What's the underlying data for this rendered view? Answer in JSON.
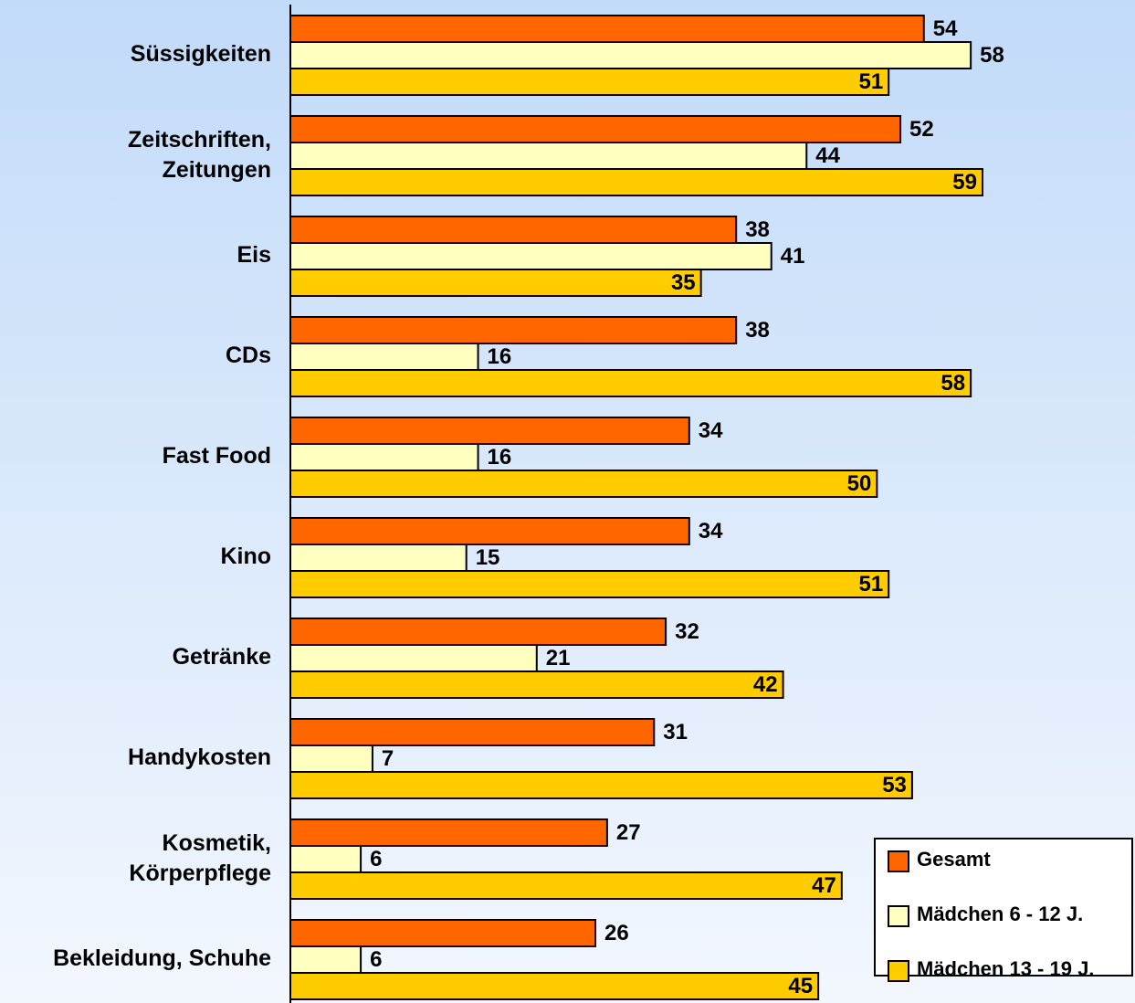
{
  "chart_data": {
    "type": "hbar",
    "categories": [
      "Süssigkeiten",
      "Zeitschriften,\nZeitungen",
      "Eis",
      "CDs",
      "Fast Food",
      "Kino",
      "Getränke",
      "Handykosten",
      "Kosmetik,\nKörperpflege",
      "Bekleidung, Schuhe"
    ],
    "series": [
      {
        "name": "Gesamt",
        "color": "#ff6600",
        "values": [
          54,
          52,
          38,
          38,
          34,
          34,
          32,
          31,
          27,
          26
        ]
      },
      {
        "name": "Mädchen 6 - 12 J.",
        "color": "#ffffc0",
        "values": [
          58,
          44,
          41,
          16,
          16,
          15,
          21,
          7,
          6,
          6
        ]
      },
      {
        "name": "Mädchen 13 - 19 J.",
        "color": "#ffcc00",
        "values": [
          51,
          59,
          35,
          58,
          50,
          51,
          42,
          53,
          47,
          45
        ]
      }
    ],
    "xlim": [
      0,
      72
    ],
    "legend": "lower right"
  }
}
